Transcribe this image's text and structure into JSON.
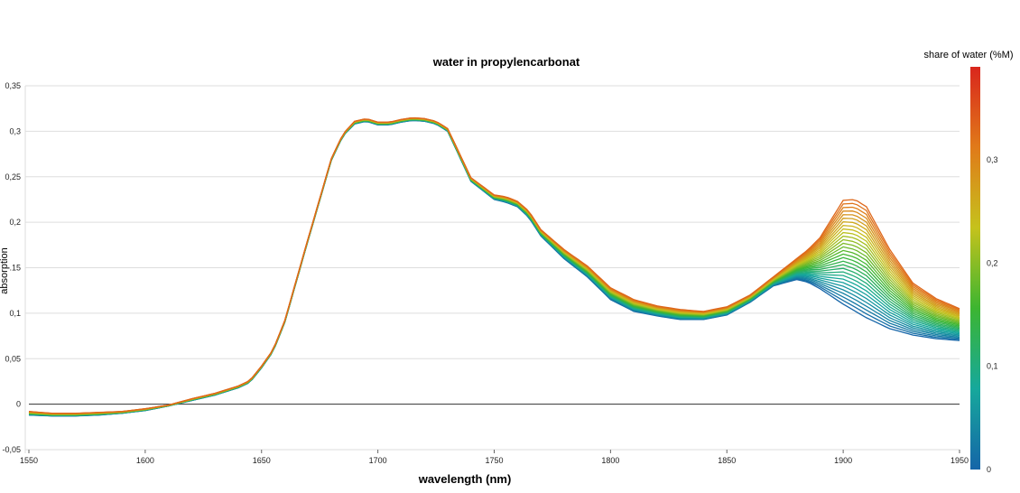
{
  "chart_data": {
    "type": "line",
    "title": "water in propylencarbonat",
    "xlabel": "wavelength (nm)",
    "ylabel": "absorption",
    "xlim": [
      1550,
      1950
    ],
    "ylim": [
      -0.05,
      0.35
    ],
    "x_ticks": [
      "1550",
      "1600",
      "1650",
      "1700",
      "1750",
      "1800",
      "1850",
      "1900",
      "1950"
    ],
    "y_ticks": [
      "-0,05",
      "0",
      "0,05",
      "0,1",
      ".15",
      "0,2",
      "0,25",
      "0,3",
      "0,35"
    ],
    "grid": true,
    "zero_line": true,
    "colorbar": {
      "title": "share of water (%M)",
      "range": [
        0,
        0.39
      ],
      "ticks": [
        "0",
        "0,1",
        "0,2",
        "0,3"
      ],
      "colors": [
        "#1565a8",
        "#16a89c",
        "#3cb531",
        "#c5c21c",
        "#e07a1a",
        "#d9261c"
      ]
    },
    "n_series": 30,
    "series_share_range": [
      0,
      0.33
    ],
    "series_low_water": {
      "x": [
        1550,
        1560,
        1570,
        1580,
        1590,
        1600,
        1610,
        1620,
        1630,
        1640,
        1645,
        1650,
        1655,
        1660,
        1670,
        1680,
        1685,
        1690,
        1695,
        1700,
        1705,
        1710,
        1715,
        1720,
        1725,
        1730,
        1740,
        1750,
        1755,
        1760,
        1765,
        1770,
        1780,
        1790,
        1800,
        1810,
        1820,
        1830,
        1840,
        1850,
        1860,
        1870,
        1880,
        1885,
        1890,
        1900,
        1910,
        1920,
        1930,
        1940,
        1950
      ],
      "y": [
        -0.012,
        -0.013,
        -0.013,
        -0.012,
        -0.01,
        -0.007,
        -0.002,
        0.004,
        0.01,
        0.018,
        0.024,
        0.04,
        0.058,
        0.09,
        0.18,
        0.268,
        0.295,
        0.308,
        0.311,
        0.307,
        0.307,
        0.31,
        0.312,
        0.311,
        0.308,
        0.3,
        0.245,
        0.225,
        0.222,
        0.217,
        0.205,
        0.185,
        0.16,
        0.14,
        0.115,
        0.102,
        0.097,
        0.093,
        0.093,
        0.098,
        0.112,
        0.13,
        0.137,
        0.134,
        0.127,
        0.11,
        0.095,
        0.083,
        0.076,
        0.072,
        0.07
      ]
    },
    "series_high_water": {
      "x": [
        1550,
        1560,
        1570,
        1580,
        1590,
        1600,
        1610,
        1620,
        1630,
        1640,
        1645,
        1650,
        1655,
        1660,
        1670,
        1680,
        1685,
        1690,
        1695,
        1700,
        1705,
        1710,
        1715,
        1720,
        1725,
        1730,
        1740,
        1750,
        1755,
        1760,
        1765,
        1770,
        1780,
        1790,
        1800,
        1810,
        1820,
        1830,
        1840,
        1850,
        1860,
        1870,
        1880,
        1885,
        1890,
        1900,
        1905,
        1910,
        1920,
        1930,
        1940,
        1950
      ],
      "y": [
        -0.008,
        -0.01,
        -0.01,
        -0.009,
        -0.008,
        -0.005,
        -0.001,
        0.006,
        0.012,
        0.02,
        0.026,
        0.042,
        0.06,
        0.092,
        0.182,
        0.27,
        0.297,
        0.311,
        0.314,
        0.31,
        0.31,
        0.313,
        0.315,
        0.314,
        0.311,
        0.303,
        0.249,
        0.23,
        0.228,
        0.223,
        0.212,
        0.192,
        0.17,
        0.152,
        0.128,
        0.115,
        0.108,
        0.104,
        0.102,
        0.107,
        0.12,
        0.14,
        0.16,
        0.17,
        0.183,
        0.224,
        0.225,
        0.217,
        0.17,
        0.133,
        0.116,
        0.105
      ]
    }
  }
}
